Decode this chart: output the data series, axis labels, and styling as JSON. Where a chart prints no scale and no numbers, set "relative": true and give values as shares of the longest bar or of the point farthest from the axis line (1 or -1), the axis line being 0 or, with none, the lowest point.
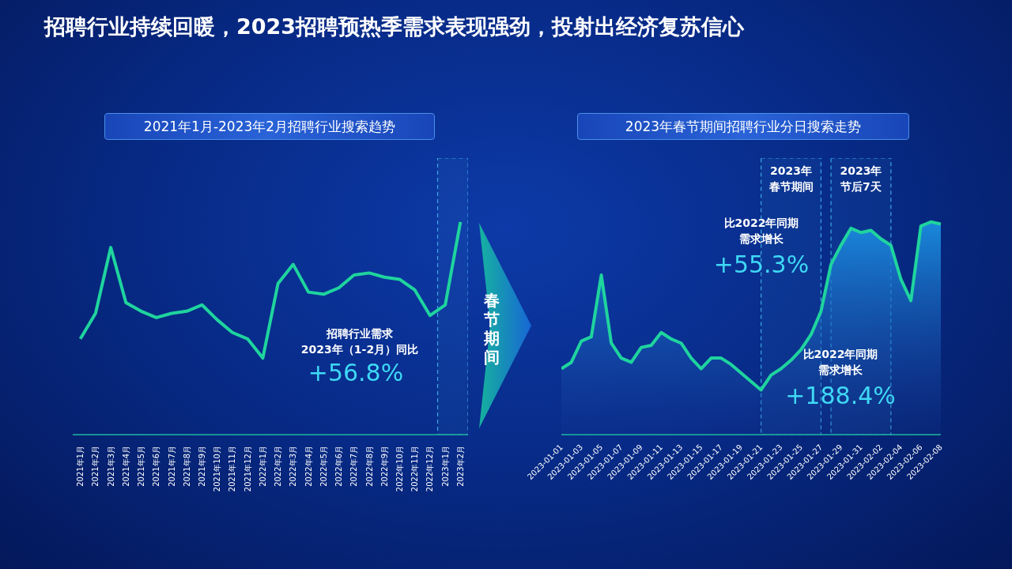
{
  "chart_data": [
    {
      "type": "line",
      "title": "招聘行业持续回暖，2023招聘预热季需求表现强劲，投射出经济复苏信心",
      "subtitle": "2021年1月-2023年2月招聘行业搜索趋势",
      "relative": true,
      "legend": false,
      "grid": false,
      "marker": "none",
      "categories": [
        "2021年1月",
        "2021年2月",
        "2021年3月",
        "2021年4月",
        "2021年5月",
        "2021年6月",
        "2021年7月",
        "2021年8月",
        "2021年9月",
        "2021年10月",
        "2021年11月",
        "2021年12月",
        "2022年1月",
        "2022年2月",
        "2022年3月",
        "2022年4月",
        "2022年5月",
        "2022年6月",
        "2022年7月",
        "2022年8月",
        "2022年9月",
        "2022年10月",
        "2022年11月",
        "2022年12月",
        "2023年1月",
        "2023年2月"
      ],
      "series": [
        {
          "color": "#1fd49e",
          "values": [
            0.45,
            0.57,
            0.88,
            0.62,
            0.58,
            0.55,
            0.57,
            0.58,
            0.61,
            0.54,
            0.48,
            0.45,
            0.36,
            0.71,
            0.8,
            0.67,
            0.66,
            0.69,
            0.75,
            0.76,
            0.74,
            0.73,
            0.68,
            0.56,
            0.61,
            1.0
          ]
        }
      ],
      "bands": [
        {
          "axis": "x",
          "from": "2023年1月",
          "to": "2023年2月",
          "color": "#3aa8e0"
        }
      ],
      "annotations": [
        "招聘行业需求\n2023年（1-2月）同比",
        "+56.8%"
      ]
    },
    {
      "type": "area",
      "title": "2023年春节期间招聘行业分日搜索走势",
      "relative": true,
      "legend": false,
      "grid": false,
      "marker": "none",
      "x": [
        "2023-01-01",
        "2023-01-02",
        "2023-01-03",
        "2023-01-04",
        "2023-01-05",
        "2023-01-06",
        "2023-01-07",
        "2023-01-08",
        "2023-01-09",
        "2023-01-10",
        "2023-01-11",
        "2023-01-12",
        "2023-01-13",
        "2023-01-14",
        "2023-01-15",
        "2023-01-16",
        "2023-01-17",
        "2023-01-18",
        "2023-01-19",
        "2023-01-20",
        "2023-01-21",
        "2023-01-22",
        "2023-01-23",
        "2023-01-24",
        "2023-01-25",
        "2023-01-26",
        "2023-01-27",
        "2023-01-28",
        "2023-01-29",
        "2023-01-30",
        "2023-01-31",
        "2023-02-01",
        "2023-02-02",
        "2023-02-03",
        "2023-02-04",
        "2023-02-05",
        "2023-02-06",
        "2023-02-07",
        "2023-02-08"
      ],
      "xlim": [
        "2023-01-01",
        "2023-02-08"
      ],
      "xticks": [
        "2023-01-01",
        "2023-01-03",
        "2023-01-05",
        "2023-01-07",
        "2023-01-09",
        "2023-01-11",
        "2023-01-13",
        "2023-01-15",
        "2023-01-17",
        "2023-01-19",
        "2023-01-21",
        "2023-01-23",
        "2023-01-25",
        "2023-01-27",
        "2023-01-29",
        "2023-01-31",
        "2023-02-02",
        "2023-02-04",
        "2023-02-06",
        "2023-02-08"
      ],
      "series": [
        {
          "color": "#1fd49e",
          "values": [
            0.31,
            0.34,
            0.44,
            0.46,
            0.75,
            0.43,
            0.36,
            0.34,
            0.41,
            0.42,
            0.48,
            0.45,
            0.43,
            0.36,
            0.31,
            0.36,
            0.36,
            0.33,
            0.29,
            0.25,
            0.21,
            0.28,
            0.31,
            0.35,
            0.4,
            0.47,
            0.58,
            0.8,
            0.89,
            0.97,
            0.95,
            0.96,
            0.92,
            0.89,
            0.73,
            0.63,
            0.98,
            1.0,
            0.99
          ]
        }
      ],
      "bands": [
        {
          "axis": "x",
          "from": "2023-01-21",
          "to": "2023-01-27",
          "label": "2023年春节期间",
          "color": "#3aa8e0"
        },
        {
          "axis": "x",
          "from": "2023-01-28",
          "to": "2023-02-03",
          "label": "2023年节后7天",
          "color": "#3aa8e0"
        }
      ],
      "annotations": [
        "比2022年同期需求增长",
        "+55.3%",
        "比2022年同期需求增长",
        "+188.4%",
        "春节期间"
      ]
    }
  ]
}
